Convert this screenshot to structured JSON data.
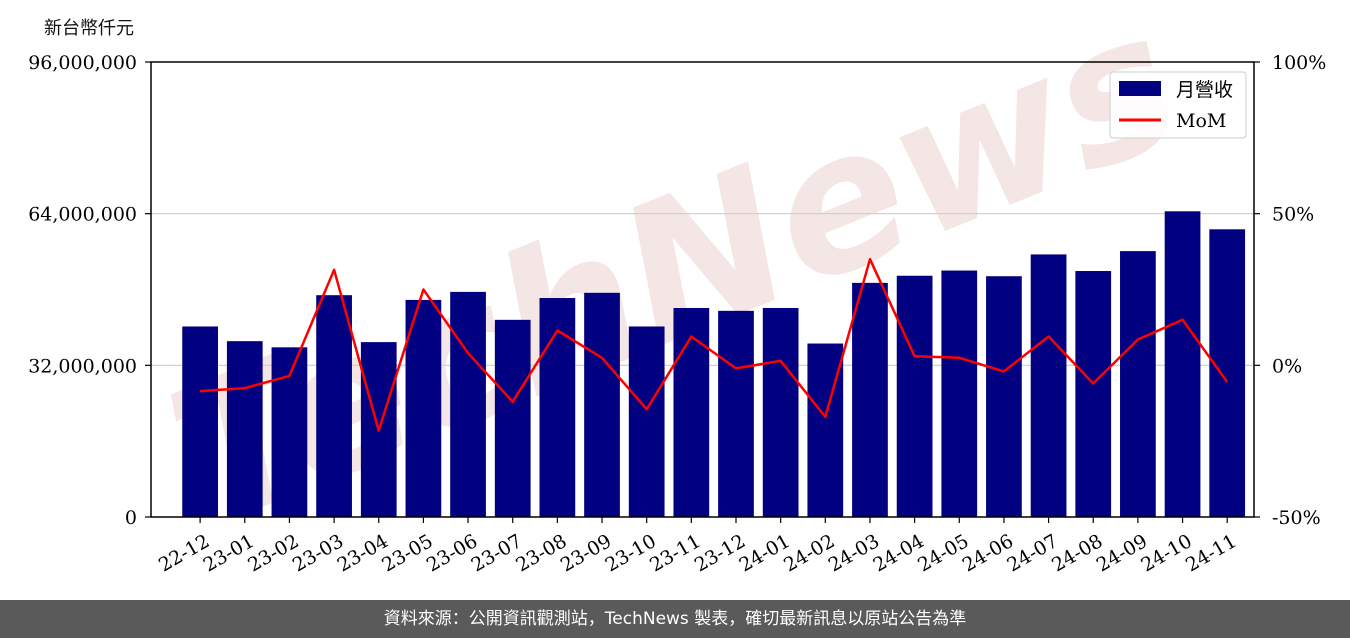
{
  "chart_data": {
    "type": "bar+line",
    "unit_label": "新台幣仟元",
    "categories": [
      "22-12",
      "23-01",
      "23-02",
      "23-03",
      "23-04",
      "23-05",
      "23-06",
      "23-07",
      "23-08",
      "23-09",
      "23-10",
      "23-11",
      "23-12",
      "24-01",
      "24-02",
      "24-03",
      "24-04",
      "24-05",
      "24-06",
      "24-07",
      "24-08",
      "24-09",
      "24-10",
      "24-11"
    ],
    "series": [
      {
        "name": "月營收",
        "axis": "left",
        "color": "#000080",
        "values": [
          40200000,
          37100000,
          35800000,
          46800000,
          36900000,
          45800000,
          47500000,
          41600000,
          46200000,
          47300000,
          40200000,
          44100000,
          43500000,
          44100000,
          36600000,
          49400000,
          50900000,
          52000000,
          50800000,
          55400000,
          51900000,
          56100000,
          64500000,
          60700000
        ]
      },
      {
        "name": "MoM",
        "axis": "right",
        "color": "#ff0000",
        "values": [
          -8.5,
          -7.5,
          -3.5,
          31.5,
          -21.5,
          25.0,
          4.0,
          -12.0,
          11.5,
          2.5,
          -14.5,
          9.5,
          -1.0,
          1.5,
          -17.0,
          35.0,
          3.0,
          2.5,
          -2.0,
          9.5,
          -6.0,
          8.5,
          15.0,
          -5.5
        ]
      }
    ],
    "y_left": {
      "ylim": [
        0,
        96000000
      ],
      "ticks": [
        "0",
        "32,000,000",
        "64,000,000",
        "96,000,000"
      ],
      "tick_values": [
        0,
        32000000,
        64000000,
        96000000
      ]
    },
    "y_right": {
      "ylim": [
        -50,
        100
      ],
      "ticks": [
        "-50%",
        "0%",
        "50%",
        "100%"
      ],
      "tick_values": [
        -50,
        0,
        50,
        100
      ]
    },
    "grid": "horizontal",
    "legend_position": "top-right",
    "watermark": "TechNews"
  },
  "footer_text": "資料來源：公開資訊觀測站，TechNews 製表，確切最新訊息以原站公告為準"
}
